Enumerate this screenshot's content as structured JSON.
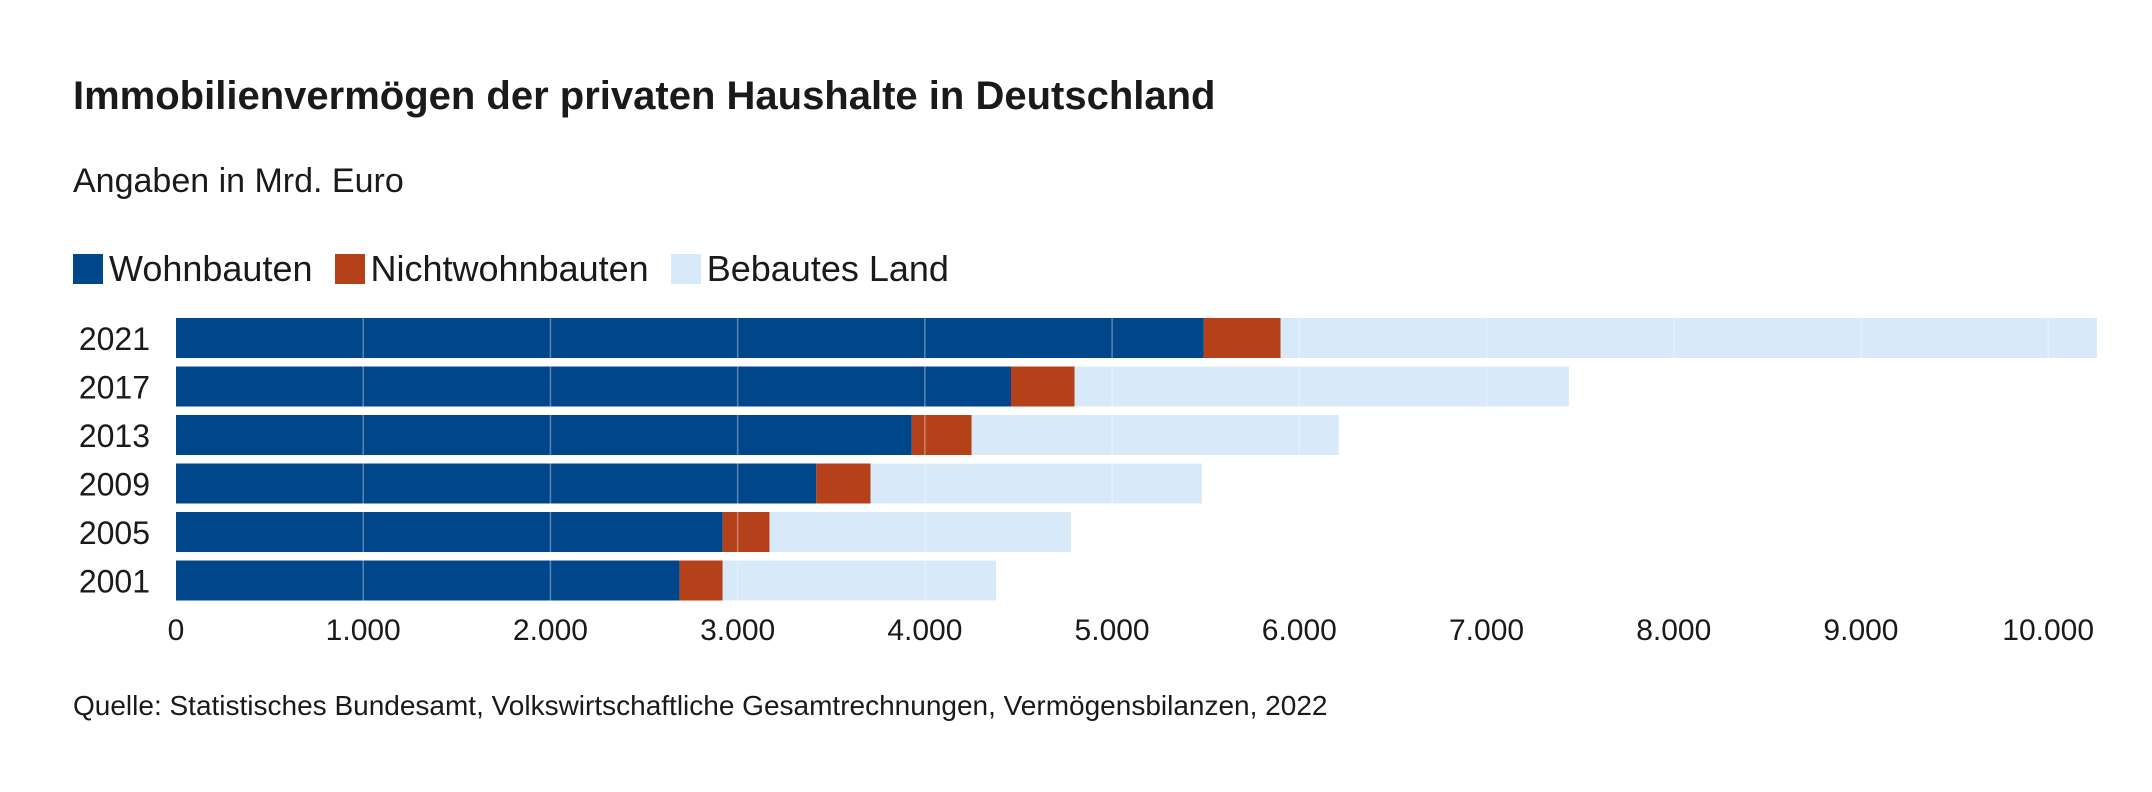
{
  "chart_data": {
    "type": "bar",
    "orientation": "horizontal",
    "stacked": true,
    "title": "Immobilienvermögen der privaten Haushalte in Deutschland",
    "subtitle": "Angaben in Mrd. Euro",
    "categories": [
      "2021",
      "2017",
      "2013",
      "2009",
      "2005",
      "2001"
    ],
    "series": [
      {
        "name": "Wohnbauten",
        "color": "#00468b",
        "values": [
          5490,
          4460,
          3930,
          3420,
          2920,
          2690
        ]
      },
      {
        "name": "Nichtwohnbauten",
        "color": "#b5411a",
        "values": [
          410,
          340,
          320,
          290,
          250,
          230
        ]
      },
      {
        "name": "Bebautes Land",
        "color": "#d8e9f9",
        "values": [
          4360,
          2640,
          1960,
          1770,
          1610,
          1460
        ]
      }
    ],
    "xlim": [
      0,
      10250
    ],
    "xticks": [
      0,
      1000,
      2000,
      3000,
      4000,
      5000,
      6000,
      7000,
      8000,
      9000,
      10000
    ],
    "xtick_labels": [
      "0",
      "1.000",
      "2.000",
      "3.000",
      "4.000",
      "5.000",
      "6.000",
      "7.000",
      "8.000",
      "9.000",
      "10.000"
    ],
    "gridlines": true,
    "legend_position": "top-left",
    "source": "Quelle: Statistisches Bundesamt, Volkswirtschaftliche Gesamtrechnungen, Vermögensbilanzen, 2022"
  }
}
